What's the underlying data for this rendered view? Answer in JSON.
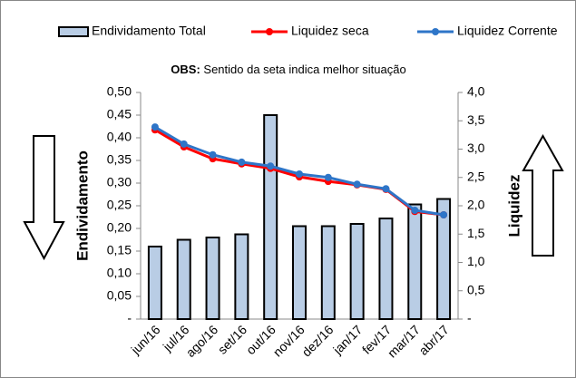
{
  "chart_data": {
    "type": "bar-line",
    "obs_label": "OBS:",
    "obs_text": "Sentido da seta indica melhor situação",
    "ylabel": "Endividamento",
    "y2label": "Liquidez",
    "categories": [
      "jun/16",
      "jul/16",
      "ago/16",
      "set/16",
      "out/16",
      "nov/16",
      "dez/16",
      "jan/17",
      "fev/17",
      "mar/17",
      "abr/17"
    ],
    "series": [
      {
        "name": "Endividamento Total",
        "type": "bar",
        "color": "#b9cde5",
        "values": [
          0.16,
          0.175,
          0.18,
          0.187,
          0.45,
          0.205,
          0.205,
          0.21,
          0.222,
          0.253,
          0.265
        ]
      },
      {
        "name": "Liquidez seca",
        "type": "line",
        "axis": "y2",
        "color": "#ff0000",
        "values": [
          3.34,
          3.04,
          2.83,
          2.74,
          2.66,
          2.51,
          2.43,
          2.37,
          2.29,
          1.9,
          1.84
        ]
      },
      {
        "name": "Liquidez Corrente",
        "type": "line",
        "axis": "y2",
        "color": "#2e75c8",
        "values": [
          3.39,
          3.09,
          2.9,
          2.77,
          2.7,
          2.56,
          2.5,
          2.38,
          2.3,
          1.92,
          1.84
        ]
      }
    ],
    "ylim": [
      0,
      0.5
    ],
    "yticks": [
      {
        "value": 0,
        "label": "-"
      },
      {
        "value": 0.05,
        "label": "0,05"
      },
      {
        "value": 0.1,
        "label": "0,10"
      },
      {
        "value": 0.15,
        "label": "0,15"
      },
      {
        "value": 0.2,
        "label": "0,20"
      },
      {
        "value": 0.25,
        "label": "0,25"
      },
      {
        "value": 0.3,
        "label": "0,30"
      },
      {
        "value": 0.35,
        "label": "0,35"
      },
      {
        "value": 0.4,
        "label": "0,40"
      },
      {
        "value": 0.45,
        "label": "0,45"
      },
      {
        "value": 0.5,
        "label": "0,50"
      }
    ],
    "y2lim": [
      0,
      4
    ],
    "y2ticks": [
      {
        "value": 0,
        "label": "-"
      },
      {
        "value": 0.5,
        "label": "0,5"
      },
      {
        "value": 1,
        "label": "1,0"
      },
      {
        "value": 1.5,
        "label": "1,5"
      },
      {
        "value": 2,
        "label": "2,0"
      },
      {
        "value": 2.5,
        "label": "2,5"
      },
      {
        "value": 3,
        "label": "3,0"
      },
      {
        "value": 3.5,
        "label": "3,5"
      },
      {
        "value": 4,
        "label": "4,0"
      }
    ]
  }
}
